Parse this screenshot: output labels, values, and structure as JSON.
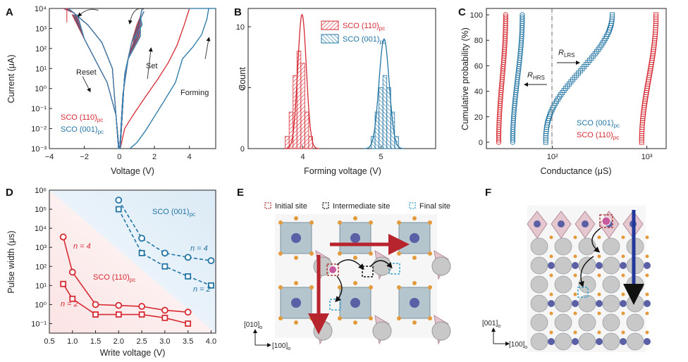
{
  "panels": {
    "A": {
      "label": "A",
      "xlabel": "Voltage (V)",
      "ylabel": "Current (μA)",
      "xticks": [
        "−4",
        "−2",
        "0",
        "2",
        "4"
      ],
      "yticks": [
        "10⁴",
        "10³",
        "10²",
        "10¹",
        "10⁰",
        "10⁻¹",
        "10⁻²",
        "10⁻³"
      ],
      "annotations": {
        "reset": "Reset",
        "set": "Set",
        "forming": "Forming"
      },
      "legend": [
        {
          "main": "SCO (110)",
          "sub": "pc",
          "color": "#d62a33"
        },
        {
          "main": "SCO (001)",
          "sub": "pc",
          "color": "#2275a3"
        }
      ]
    },
    "B": {
      "label": "B",
      "xlabel": "Forming voltage (V)",
      "ylabel": "Count",
      "xticks": [
        "4",
        "5"
      ],
      "yticks": [
        "0",
        "5",
        "10"
      ],
      "legend": [
        {
          "main": "SCO (110)",
          "sub": "pc",
          "color": "#d62a33"
        },
        {
          "main": "SCO (001)",
          "sub": "pc",
          "color": "#2275a3"
        }
      ]
    },
    "C": {
      "label": "C",
      "xlabel": "Conductance (μS)",
      "ylabel": "Cumulative probability (%)",
      "xticks": [
        "10²",
        "10³"
      ],
      "yticks": [
        "0",
        "20",
        "40",
        "60",
        "80",
        "100"
      ],
      "annotations": {
        "lrs": "R",
        "lrs_sub": "LRS",
        "hrs": "R",
        "hrs_sub": "HRS"
      },
      "legend": [
        {
          "main": "SCO (001)",
          "sub": "pc",
          "color": "#2275a3"
        },
        {
          "main": "SCO (110)",
          "sub": "pc",
          "color": "#d62a33"
        }
      ]
    },
    "D": {
      "label": "D",
      "xlabel": "Write voltage (V)",
      "ylabel": "Pulse width (μs)",
      "xticks": [
        "0.5",
        "1.0",
        "1.5",
        "2.0",
        "2.5",
        "3.0",
        "3.5",
        "4.0"
      ],
      "yticks": [
        "10⁶",
        "10⁵",
        "10⁴",
        "10³",
        "10²",
        "10¹",
        "10⁰",
        "10⁻¹"
      ],
      "annotations": {
        "red_n4": "n = 4",
        "red_n2": "n = 2",
        "blue_n4": "n = 4",
        "blue_n2": "n = 2",
        "red_label": "SCO (110)",
        "red_sub": "pc",
        "blue_label": "SCO (001)",
        "blue_sub": "pc"
      }
    },
    "E": {
      "label": "E",
      "legend": [
        "Initial site",
        "Intermediate site",
        "Final site"
      ],
      "axis_y": "[010]",
      "axis_y_sub": "o",
      "axis_x": "[100]",
      "axis_x_sub": "o"
    },
    "F": {
      "label": "F",
      "axis_y": "[001]",
      "axis_y_sub": "o",
      "axis_x": "[100]",
      "axis_x_sub": "o"
    }
  },
  "chart_data": [
    {
      "panel": "A",
      "type": "line",
      "xlim": [
        -4,
        5.5
      ],
      "ylim_log10": [
        -3,
        4
      ],
      "series": [
        {
          "name": "SCO (110)pc",
          "color": "#d62a33",
          "forming": {
            "x": [
              0.05,
              0.3,
              0.8,
              1.5,
              2.2,
              2.8,
              3.3,
              3.7,
              4.0
            ],
            "y": [
              0.001,
              0.01,
              0.05,
              0.4,
              3,
              20,
              150,
              1500,
              10000
            ]
          }
        },
        {
          "name": "SCO (001)pc",
          "color": "#2275a3",
          "forming": {
            "x": [
              0.6,
              1.0,
              1.5,
              2.0,
              2.5,
              3.2,
              3.6,
              4.2,
              4.7,
              5.0,
              5.1
            ],
            "y": [
              0.001,
              0.002,
              0.008,
              0.04,
              0.2,
              2,
              30,
              120,
              500,
              3000,
              10000
            ]
          }
        }
      ]
    },
    {
      "panel": "B",
      "type": "bar",
      "xlim": [
        3.3,
        5.7
      ],
      "ylim": [
        0,
        11.5
      ],
      "series": [
        {
          "name": "SCO (110)pc",
          "color": "#d62a33",
          "bins": [
            3.8,
            3.85,
            3.9,
            3.95,
            4.0,
            4.05,
            4.1
          ],
          "counts": [
            1,
            3,
            6,
            8,
            7,
            3,
            1
          ],
          "fit": {
            "type": "gaussian",
            "mean": 3.99,
            "sigma": 0.055,
            "peak": 11
          }
        },
        {
          "name": "SCO (001)pc",
          "color": "#2275a3",
          "bins": [
            4.9,
            4.95,
            5.0,
            5.05,
            5.1,
            5.15,
            5.2
          ],
          "counts": [
            1,
            3,
            5,
            6,
            5,
            3,
            1
          ],
          "fit": {
            "type": "gaussian",
            "mean": 5.04,
            "sigma": 0.065,
            "peak": 9
          }
        }
      ]
    },
    {
      "panel": "C",
      "type": "scatter",
      "xscale": "log",
      "xlim": [
        20,
        1600
      ],
      "ylim": [
        -5,
        105
      ],
      "series": [
        {
          "name": "SCO (110)pc HRS",
          "color": "#d62a33",
          "xrange": [
            27,
            32
          ]
        },
        {
          "name": "SCO (001)pc HRS",
          "color": "#2275a3",
          "xrange": [
            38,
            48
          ]
        },
        {
          "name": "SCO (001)pc LRS",
          "color": "#2275a3",
          "xrange": [
            85,
            430
          ]
        },
        {
          "name": "SCO (110)pc LRS",
          "color": "#d62a33",
          "xrange": [
            880,
            1250
          ]
        }
      ]
    },
    {
      "panel": "D",
      "type": "line",
      "ylog": true,
      "xlim": [
        0.5,
        4.1
      ],
      "ylim_log10": [
        -1.5,
        6
      ],
      "series": [
        {
          "name": "SCO (110)pc n=4",
          "color": "#d62a33",
          "marker": "circle",
          "x": [
            0.8,
            1.0,
            1.5,
            2.0,
            2.5,
            3.0,
            3.5
          ],
          "y": [
            3500,
            50,
            1.0,
            0.9,
            0.8,
            0.5,
            0.4
          ]
        },
        {
          "name": "SCO (110)pc n=2",
          "color": "#d62a33",
          "marker": "square",
          "x": [
            0.8,
            1.0,
            1.5,
            2.0,
            2.5,
            3.0,
            3.5
          ],
          "y": [
            12,
            2.0,
            0.3,
            0.3,
            0.3,
            0.2,
            0.1
          ]
        },
        {
          "name": "SCO (001)pc n=4",
          "color": "#2275a3",
          "marker": "circle",
          "dash": true,
          "x": [
            2.0,
            2.5,
            3.0,
            3.5,
            4.0
          ],
          "y": [
            300000,
            3000,
            500,
            300,
            200
          ]
        },
        {
          "name": "SCO (001)pc n=2",
          "color": "#2275a3",
          "marker": "square",
          "dash": true,
          "x": [
            2.0,
            2.5,
            3.0,
            3.5,
            4.0
          ],
          "y": [
            100000,
            500,
            100,
            30,
            10
          ]
        }
      ]
    }
  ]
}
